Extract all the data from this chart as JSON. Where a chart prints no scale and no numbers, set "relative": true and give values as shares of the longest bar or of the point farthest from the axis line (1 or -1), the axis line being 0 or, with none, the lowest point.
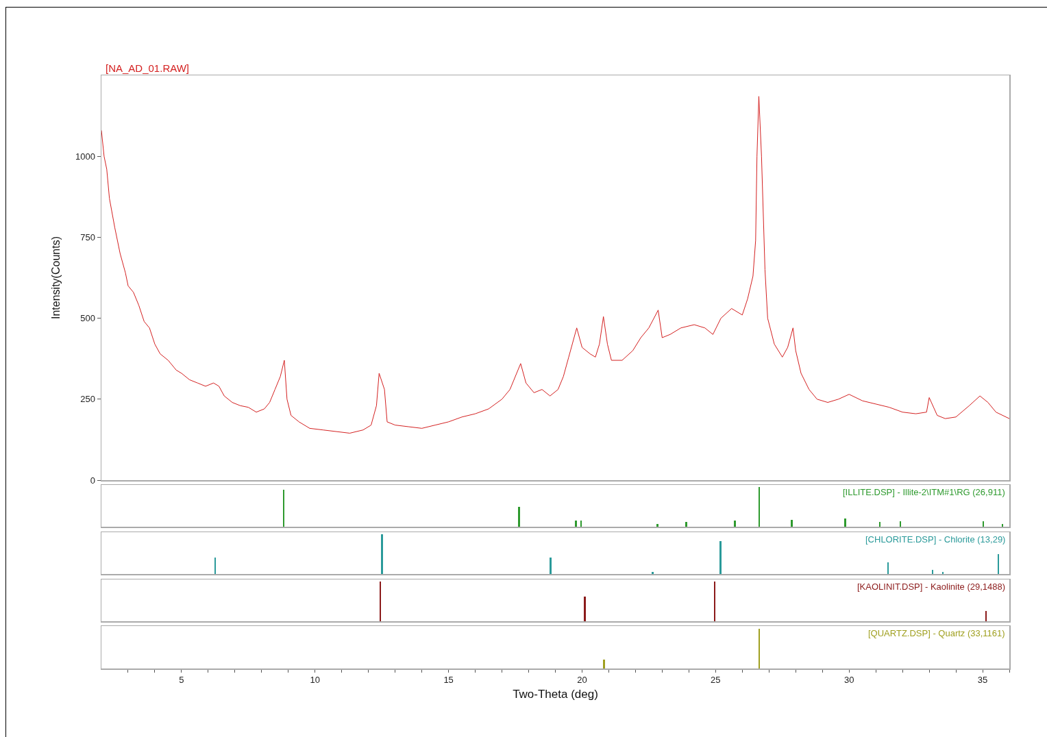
{
  "chart_data": [
    {
      "type": "line",
      "ylabel": "Intensity(Counts)",
      "xlim": [
        2,
        36
      ],
      "ylim": [
        0,
        1250
      ],
      "yticks": [
        0,
        250,
        500,
        750,
        1000
      ],
      "tick_labels": "y",
      "x": [
        2.0,
        2.1,
        2.2,
        2.3,
        2.5,
        2.7,
        2.9,
        3.0,
        3.2,
        3.4,
        3.6,
        3.8,
        4.0,
        4.2,
        4.5,
        4.8,
        5.0,
        5.3,
        5.6,
        5.9,
        6.2,
        6.4,
        6.6,
        6.9,
        7.2,
        7.5,
        7.8,
        8.1,
        8.3,
        8.5,
        8.7,
        8.85,
        8.95,
        9.1,
        9.4,
        9.8,
        10.3,
        10.8,
        11.3,
        11.8,
        12.1,
        12.3,
        12.4,
        12.6,
        12.7,
        13.0,
        13.5,
        14.0,
        14.5,
        15.0,
        15.5,
        16.0,
        16.5,
        17.0,
        17.3,
        17.7,
        17.9,
        18.2,
        18.5,
        18.8,
        19.1,
        19.3,
        19.5,
        19.8,
        20.0,
        20.3,
        20.5,
        20.65,
        20.8,
        20.95,
        21.1,
        21.5,
        21.9,
        22.2,
        22.5,
        22.85,
        23.0,
        23.3,
        23.7,
        24.2,
        24.6,
        24.9,
        25.2,
        25.6,
        26.0,
        26.2,
        26.4,
        26.5,
        26.55,
        26.62,
        26.72,
        26.85,
        26.95,
        27.2,
        27.5,
        27.7,
        27.9,
        28.0,
        28.2,
        28.5,
        28.8,
        29.2,
        29.6,
        30.0,
        30.5,
        31.0,
        31.5,
        32.0,
        32.5,
        32.9,
        33.0,
        33.3,
        33.6,
        34.0,
        34.5,
        34.9,
        35.2,
        35.5,
        36.0
      ],
      "series": [
        {
          "name": "[NA_AD_01.RAW]",
          "color": "#d42020",
          "values": [
            1080,
            1000,
            960,
            870,
            780,
            700,
            640,
            600,
            580,
            540,
            490,
            470,
            420,
            390,
            370,
            340,
            330,
            310,
            300,
            290,
            300,
            290,
            260,
            240,
            230,
            225,
            210,
            220,
            240,
            280,
            320,
            370,
            250,
            200,
            180,
            160,
            155,
            150,
            145,
            155,
            170,
            230,
            330,
            280,
            180,
            170,
            165,
            160,
            170,
            180,
            195,
            205,
            220,
            250,
            280,
            360,
            300,
            270,
            280,
            260,
            280,
            320,
            380,
            470,
            410,
            390,
            380,
            420,
            505,
            420,
            370,
            370,
            400,
            440,
            470,
            525,
            440,
            450,
            470,
            480,
            470,
            450,
            500,
            530,
            510,
            560,
            630,
            740,
            1000,
            1185,
            1000,
            650,
            500,
            420,
            380,
            410,
            470,
            400,
            330,
            280,
            250,
            240,
            250,
            265,
            245,
            235,
            225,
            210,
            205,
            210,
            255,
            200,
            190,
            195,
            230,
            260,
            240,
            210,
            190
          ]
        }
      ]
    },
    {
      "type": "bar",
      "relative": true,
      "xlim": [
        2,
        36
      ],
      "tick_labels": false,
      "x": [
        8.82,
        17.64,
        19.77,
        19.97,
        22.82,
        23.9,
        25.72,
        26.64,
        27.85,
        29.85,
        31.15,
        31.92,
        35.03,
        35.74
      ],
      "series": [
        {
          "name": "[ILLITE.DSP] - Illite-2\\ITM#1\\RG (26,911)",
          "color": "#2e9a2e",
          "values": [
            0.93,
            0.5,
            0.16,
            0.16,
            0.07,
            0.12,
            0.16,
            1,
            0.18,
            0.2,
            0.12,
            0.14,
            0.14,
            0.07
          ]
        }
      ]
    },
    {
      "type": "bar",
      "relative": true,
      "xlim": [
        2,
        36
      ],
      "tick_labels": false,
      "x": [
        6.26,
        12.51,
        18.82,
        22.64,
        25.18,
        31.46,
        33.13,
        33.51,
        35.59
      ],
      "series": [
        {
          "name": "[CHLORITE.DSP] - Chlorite (13,29)",
          "color": "#2a9a9a",
          "values": [
            0.41,
            1,
            0.41,
            0.05,
            0.83,
            0.29,
            0.1,
            0.05,
            0.5
          ]
        }
      ]
    },
    {
      "type": "bar",
      "relative": true,
      "xlim": [
        2,
        36
      ],
      "tick_labels": false,
      "x": [
        12.44,
        20.1,
        24.97,
        35.13
      ],
      "series": [
        {
          "name": "[KAOLINIT.DSP] - Kaolinite (29,1488)",
          "color": "#8b1a1a",
          "values": [
            1,
            0.62,
            1,
            0.26
          ]
        }
      ]
    },
    {
      "type": "bar",
      "relative": true,
      "xlabel": "Two-Theta (deg)",
      "xlim": [
        2,
        36
      ],
      "tick_labels": "x",
      "xticks": [
        {
          "value": 3,
          "label": null
        },
        {
          "value": 4,
          "label": null
        },
        5,
        {
          "value": 6,
          "label": null
        },
        {
          "value": 7,
          "label": null
        },
        {
          "value": 8,
          "label": null
        },
        {
          "value": 9,
          "label": null
        },
        10,
        {
          "value": 11,
          "label": null
        },
        {
          "value": 12,
          "label": null
        },
        {
          "value": 13,
          "label": null
        },
        {
          "value": 14,
          "label": null
        },
        15,
        {
          "value": 16,
          "label": null
        },
        {
          "value": 17,
          "label": null
        },
        {
          "value": 18,
          "label": null
        },
        {
          "value": 19,
          "label": null
        },
        20,
        {
          "value": 21,
          "label": null
        },
        {
          "value": 22,
          "label": null
        },
        {
          "value": 23,
          "label": null
        },
        {
          "value": 24,
          "label": null
        },
        25,
        {
          "value": 26,
          "label": null
        },
        {
          "value": 27,
          "label": null
        },
        {
          "value": 28,
          "label": null
        },
        {
          "value": 29,
          "label": null
        },
        30,
        {
          "value": 31,
          "label": null
        },
        {
          "value": 32,
          "label": null
        },
        {
          "value": 33,
          "label": null
        },
        {
          "value": 34,
          "label": null
        },
        35,
        {
          "value": 36,
          "label": null
        }
      ],
      "x": [
        20.82,
        26.64
      ],
      "series": [
        {
          "name": "[QUARTZ.DSP] - Quartz (33,1161)",
          "color": "#a0a020",
          "values": [
            0.22,
            1
          ]
        }
      ]
    }
  ]
}
